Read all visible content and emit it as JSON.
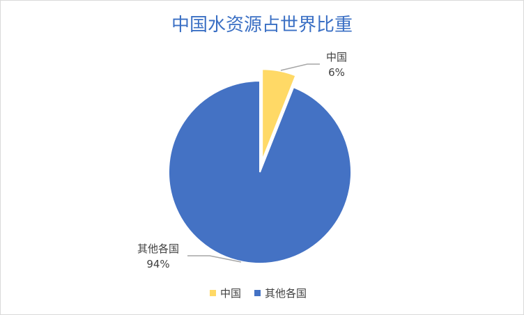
{
  "chart_data": {
    "type": "pie",
    "title": "中国水资源占世界比重",
    "categories": [
      "中国",
      "其他各国"
    ],
    "values": [
      6,
      94
    ],
    "value_labels": [
      "6%",
      "94%"
    ],
    "colors": [
      "#ffd966",
      "#4472c4"
    ],
    "exploded": [
      "中国"
    ],
    "legend": "bottom"
  }
}
